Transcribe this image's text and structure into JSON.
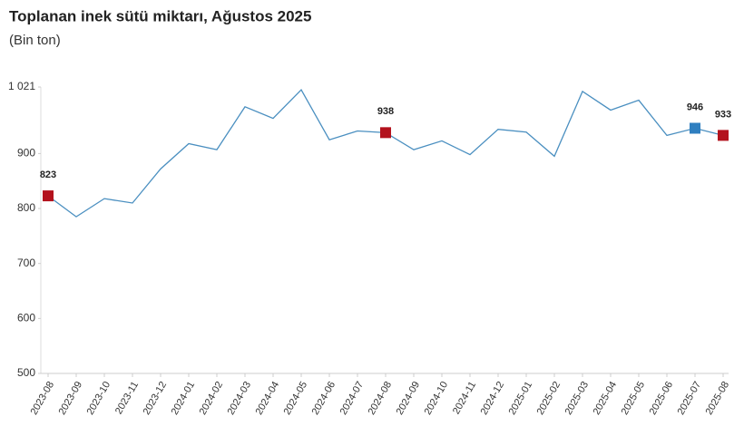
{
  "chart_data": {
    "type": "line",
    "title": "Toplanan inek sütü miktarı, Ağustos 2025",
    "subtitle": "(Bin ton)",
    "categories": [
      "2023-08",
      "2023-09",
      "2023-10",
      "2023-11",
      "2023-12",
      "2024-01",
      "2024-02",
      "2024-03",
      "2024-04",
      "2024-05",
      "2024-06",
      "2024-07",
      "2024-08",
      "2024-09",
      "2024-10",
      "2024-11",
      "2024-12",
      "2025-01",
      "2025-02",
      "2025-03",
      "2025-04",
      "2025-05",
      "2025-06",
      "2025-07",
      "2025-08"
    ],
    "series": [
      {
        "color": "#4a8fc0",
        "values": [
          823,
          785,
          818,
          810,
          872,
          918,
          907,
          985,
          964,
          1016,
          925,
          941,
          938,
          907,
          923,
          898,
          944,
          939,
          895,
          1013,
          979,
          997,
          933,
          946,
          933
        ],
        "marker_colors": [
          "#b3121d",
          null,
          null,
          null,
          null,
          null,
          null,
          null,
          null,
          null,
          null,
          null,
          "#b3121d",
          null,
          null,
          null,
          null,
          null,
          null,
          null,
          null,
          null,
          null,
          "#2f7fc0",
          "#b3121d"
        ]
      }
    ],
    "ylim": [
      500,
      1021
    ],
    "yticks": [
      500,
      600,
      700,
      800,
      900,
      {
        "value": 1021,
        "label": "1 021"
      }
    ],
    "grid": false
  }
}
